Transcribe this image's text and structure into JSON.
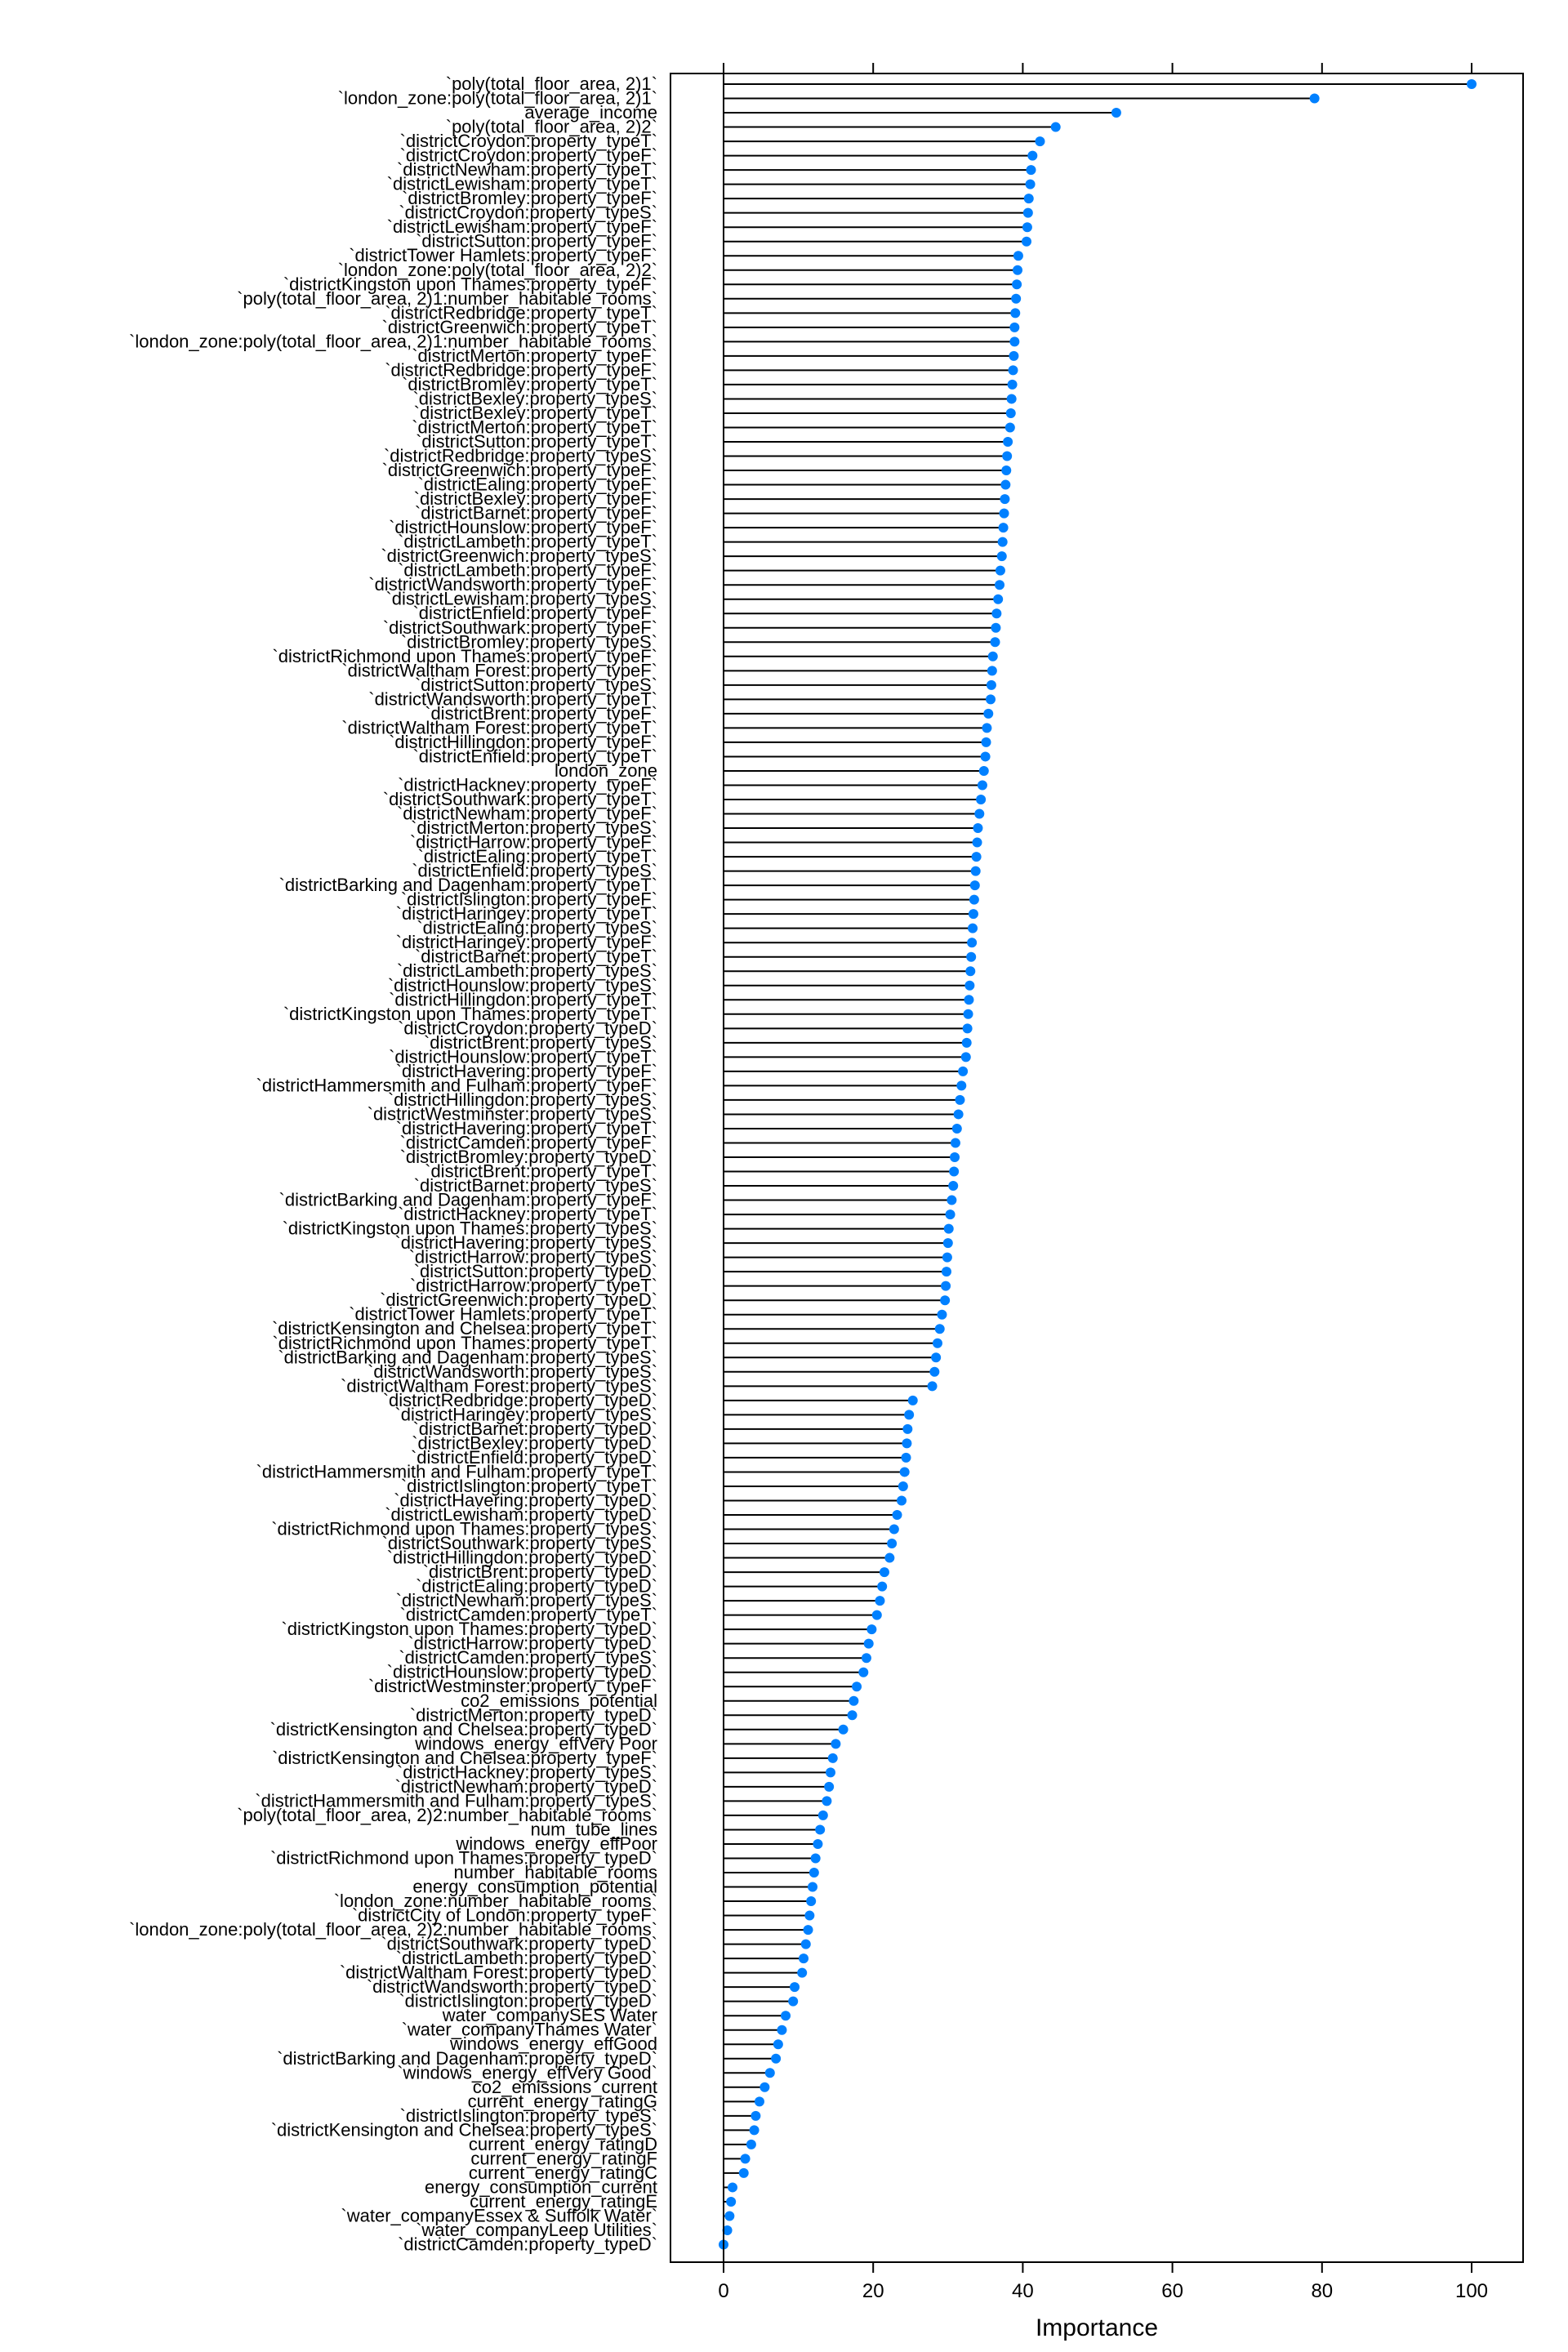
{
  "chart_data": {
    "type": "scatter",
    "style": "lollipop dot plot",
    "title": "",
    "xlabel": "Importance",
    "ylabel": "",
    "xlim": [
      -7,
      107
    ],
    "xticks": [
      0,
      20,
      40,
      60,
      80,
      100
    ],
    "xtick_labels": [
      "0",
      "20",
      "40",
      "60",
      "80",
      "100"
    ],
    "point_color": "#0080FF",
    "grid": false,
    "legend": "none",
    "categories": [
      "`poly(total_floor_area, 2)1`",
      "`london_zone:poly(total_floor_area, 2)1`",
      "average_income",
      "`poly(total_floor_area, 2)2`",
      "`districtCroydon:property_typeT`",
      "`districtCroydon:property_typeF`",
      "`districtNewham:property_typeT`",
      "`districtLewisham:property_typeT`",
      "`districtBromley:property_typeF`",
      "`districtCroydon:property_typeS`",
      "`districtLewisham:property_typeF`",
      "`districtSutton:property_typeF`",
      "`districtTower Hamlets:property_typeF`",
      "`london_zone:poly(total_floor_area, 2)2`",
      "`districtKingston upon Thames:property_typeF`",
      "`poly(total_floor_area, 2)1:number_habitable_rooms`",
      "`districtRedbridge:property_typeT`",
      "`districtGreenwich:property_typeT`",
      "`london_zone:poly(total_floor_area, 2)1:number_habitable_rooms`",
      "`districtMerton:property_typeF`",
      "`districtRedbridge:property_typeF`",
      "`districtBromley:property_typeT`",
      "`districtBexley:property_typeS`",
      "`districtBexley:property_typeT`",
      "`districtMerton:property_typeT`",
      "`districtSutton:property_typeT`",
      "`districtRedbridge:property_typeS`",
      "`districtGreenwich:property_typeF`",
      "`districtEaling:property_typeF`",
      "`districtBexley:property_typeF`",
      "`districtBarnet:property_typeF`",
      "`districtHounslow:property_typeF`",
      "`districtLambeth:property_typeT`",
      "`districtGreenwich:property_typeS`",
      "`districtLambeth:property_typeF`",
      "`districtWandsworth:property_typeF`",
      "`districtLewisham:property_typeS`",
      "`districtEnfield:property_typeF`",
      "`districtSouthwark:property_typeF`",
      "`districtBromley:property_typeS`",
      "`districtRichmond upon Thames:property_typeF`",
      "`districtWaltham Forest:property_typeF`",
      "`districtSutton:property_typeS`",
      "`districtWandsworth:property_typeT`",
      "`districtBrent:property_typeF`",
      "`districtWaltham Forest:property_typeT`",
      "`districtHillingdon:property_typeF`",
      "`districtEnfield:property_typeT`",
      "london_zone",
      "`districtHackney:property_typeF`",
      "`districtSouthwark:property_typeT`",
      "`districtNewham:property_typeF`",
      "`districtMerton:property_typeS`",
      "`districtHarrow:property_typeF`",
      "`districtEaling:property_typeT`",
      "`districtEnfield:property_typeS`",
      "`districtBarking and Dagenham:property_typeT`",
      "`districtIslington:property_typeF`",
      "`districtHaringey:property_typeT`",
      "`districtEaling:property_typeS`",
      "`districtHaringey:property_typeF`",
      "`districtBarnet:property_typeT`",
      "`districtLambeth:property_typeS`",
      "`districtHounslow:property_typeS`",
      "`districtHillingdon:property_typeT`",
      "`districtKingston upon Thames:property_typeT`",
      "`districtCroydon:property_typeD`",
      "`districtBrent:property_typeS`",
      "`districtHounslow:property_typeT`",
      "`districtHavering:property_typeF`",
      "`districtHammersmith and Fulham:property_typeF`",
      "`districtHillingdon:property_typeS`",
      "`districtWestminster:property_typeS`",
      "`districtHavering:property_typeT`",
      "`districtCamden:property_typeF`",
      "`districtBromley:property_typeD`",
      "`districtBrent:property_typeT`",
      "`districtBarnet:property_typeS`",
      "`districtBarking and Dagenham:property_typeF`",
      "`districtHackney:property_typeT`",
      "`districtKingston upon Thames:property_typeS`",
      "`districtHavering:property_typeS`",
      "`districtHarrow:property_typeS`",
      "`districtSutton:property_typeD`",
      "`districtHarrow:property_typeT`",
      "`districtGreenwich:property_typeD`",
      "`districtTower Hamlets:property_typeT`",
      "`districtKensington and Chelsea:property_typeT`",
      "`districtRichmond upon Thames:property_typeT`",
      "`districtBarking and Dagenham:property_typeS`",
      "`districtWandsworth:property_typeS`",
      "`districtWaltham Forest:property_typeS`",
      "`districtRedbridge:property_typeD`",
      "`districtHaringey:property_typeS`",
      "`districtBarnet:property_typeD`",
      "`districtBexley:property_typeD`",
      "`districtEnfield:property_typeD`",
      "`districtHammersmith and Fulham:property_typeT`",
      "`districtIslington:property_typeT`",
      "`districtHavering:property_typeD`",
      "`districtLewisham:property_typeD`",
      "`districtRichmond upon Thames:property_typeS`",
      "`districtSouthwark:property_typeS`",
      "`districtHillingdon:property_typeD`",
      "`districtBrent:property_typeD`",
      "`districtEaling:property_typeD`",
      "`districtNewham:property_typeS`",
      "`districtCamden:property_typeT`",
      "`districtKingston upon Thames:property_typeD`",
      "`districtHarrow:property_typeD`",
      "`districtCamden:property_typeS`",
      "`districtHounslow:property_typeD`",
      "`districtWestminster:property_typeF`",
      "co2_emissions_potential",
      "`districtMerton:property_typeD`",
      "`districtKensington and Chelsea:property_typeD`",
      "windows_energy_effVery Poor",
      "`districtKensington and Chelsea:property_typeF`",
      "`districtHackney:property_typeS`",
      "`districtNewham:property_typeD`",
      "`districtHammersmith and Fulham:property_typeS`",
      "`poly(total_floor_area, 2)2:number_habitable_rooms`",
      "num_tube_lines",
      "windows_energy_effPoor",
      "`districtRichmond upon Thames:property_typeD`",
      "number_habitable_rooms",
      "energy_consumption_potential",
      "`london_zone:number_habitable_rooms`",
      "`districtCity of London:property_typeF`",
      "`london_zone:poly(total_floor_area, 2)2:number_habitable_rooms`",
      "`districtSouthwark:property_typeD`",
      "`districtLambeth:property_typeD`",
      "`districtWaltham Forest:property_typeD`",
      "`districtWandsworth:property_typeD`",
      "`districtIslington:property_typeD`",
      "water_companySES Water",
      "`water_companyThames Water`",
      "windows_energy_effGood",
      "`districtBarking and Dagenham:property_typeD`",
      "`windows_energy_effVery Good`",
      "co2_emissions_current",
      "current_energy_ratingG",
      "`districtIslington:property_typeS`",
      "`districtKensington and Chelsea:property_typeS`",
      "current_energy_ratingD",
      "current_energy_ratingF",
      "current_energy_ratingC",
      "energy_consumption_current",
      "current_energy_ratingE",
      "`water_companyEssex & Suffolk Water`",
      "`water_companyLeep Utilities`",
      "`districtCamden:property_typeD`"
    ],
    "values": [
      100,
      79,
      52.5,
      44.4,
      42.3,
      41.3,
      41.1,
      41.0,
      40.8,
      40.7,
      40.6,
      40.5,
      39.4,
      39.3,
      39.2,
      39.1,
      39.0,
      38.9,
      38.9,
      38.8,
      38.7,
      38.6,
      38.5,
      38.4,
      38.3,
      38.0,
      37.9,
      37.8,
      37.7,
      37.6,
      37.5,
      37.4,
      37.3,
      37.2,
      37.0,
      36.9,
      36.7,
      36.5,
      36.4,
      36.3,
      36.0,
      35.9,
      35.8,
      35.7,
      35.4,
      35.2,
      35.1,
      35.0,
      34.8,
      34.6,
      34.4,
      34.2,
      34.0,
      33.9,
      33.8,
      33.7,
      33.6,
      33.5,
      33.4,
      33.3,
      33.2,
      33.1,
      33.0,
      32.9,
      32.8,
      32.7,
      32.6,
      32.5,
      32.4,
      32.0,
      31.8,
      31.6,
      31.4,
      31.2,
      31.0,
      30.9,
      30.8,
      30.7,
      30.5,
      30.3,
      30.1,
      30.0,
      29.9,
      29.8,
      29.7,
      29.6,
      29.2,
      28.9,
      28.6,
      28.4,
      28.2,
      27.9,
      25.3,
      24.8,
      24.6,
      24.5,
      24.4,
      24.2,
      24.0,
      23.8,
      23.2,
      22.8,
      22.5,
      22.2,
      21.5,
      21.2,
      20.9,
      20.5,
      19.8,
      19.4,
      19.1,
      18.7,
      17.8,
      17.4,
      17.2,
      16.0,
      15.0,
      14.6,
      14.3,
      14.1,
      13.8,
      13.3,
      12.9,
      12.6,
      12.3,
      12.1,
      11.9,
      11.7,
      11.5,
      11.3,
      11.0,
      10.7,
      10.5,
      9.5,
      9.3,
      8.3,
      7.8,
      7.3,
      7.0,
      6.2,
      5.5,
      4.8,
      4.3,
      4.1,
      3.7,
      2.9,
      2.7,
      1.2,
      1.0,
      0.8,
      0.5,
      0.0
    ]
  }
}
